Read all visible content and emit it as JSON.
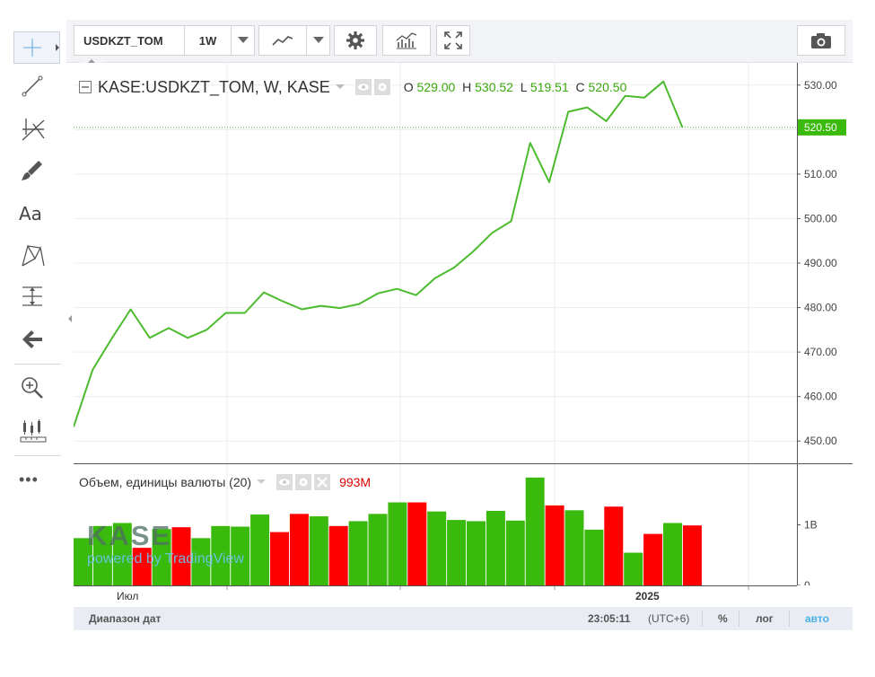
{
  "toolbar": {
    "symbol": "USDKZT_TOM",
    "interval": "1W"
  },
  "legend": {
    "title": "KASE:USDKZT_TOM, W, KASE",
    "o_label": "O",
    "o_value": "529.00",
    "h_label": "H",
    "h_value": "530.52",
    "l_label": "L",
    "l_value": "519.51",
    "c_label": "C",
    "c_value": "520.50"
  },
  "volume_legend": {
    "title": "Объем, единицы валюты (20)",
    "value": "993M"
  },
  "left_toolbar": {
    "text_tool_label": "Aa",
    "more_label": "•••"
  },
  "watermark": {
    "logo_text": "KASE",
    "powered": "powered by TradingView"
  },
  "price_axis": {
    "ticks": [
      "530.00",
      "520.00",
      "510.00",
      "500.00",
      "490.00",
      "480.00",
      "470.00",
      "460.00",
      "450.00"
    ],
    "last_price": "520.50"
  },
  "volume_axis": {
    "ticks": [
      "1B",
      "0"
    ]
  },
  "time_axis": {
    "labels": [
      "Июл",
      "2025"
    ]
  },
  "status_bar": {
    "date_range": "Диапазон дат",
    "time": "23:05:11",
    "timezone": "(UTC+6)",
    "percent": "%",
    "log": "лог",
    "auto": "авто"
  },
  "colors": {
    "line": "#4cbb2e",
    "volume_up": "#3aba0d",
    "volume_down": "#ff0000",
    "price_tag_bg": "#3aba0d",
    "auto_text": "#4ab0e6",
    "volume_value": "#e00000"
  },
  "chart_data": {
    "type": "line",
    "title": "KASE:USDKZT_TOM, W, KASE",
    "ylim": [
      445.0,
      535.0
    ],
    "x": [
      0,
      1,
      2,
      3,
      4,
      5,
      6,
      7,
      8,
      9,
      10,
      11,
      12,
      13,
      14,
      15,
      16,
      17,
      18,
      19,
      20,
      21,
      22,
      23,
      24,
      25,
      26,
      27,
      28,
      29,
      30,
      31,
      32
    ],
    "values": [
      453.2,
      466.0,
      473.0,
      479.6,
      473.2,
      475.4,
      473.2,
      475.0,
      478.8,
      478.8,
      483.4,
      481.4,
      479.6,
      480.4,
      479.9,
      480.8,
      483.2,
      484.2,
      482.8,
      486.6,
      489.0,
      492.6,
      496.8,
      499.4,
      517.0,
      508.2,
      524.0,
      525.0,
      521.9,
      527.6,
      527.2,
      530.8,
      520.5
    ],
    "volume": [
      {
        "v": 0.78,
        "up": true
      },
      {
        "v": 0.98,
        "up": true
      },
      {
        "v": 1.03,
        "up": true
      },
      {
        "v": 0.62,
        "up": false
      },
      {
        "v": 0.93,
        "up": true
      },
      {
        "v": 0.96,
        "up": false
      },
      {
        "v": 0.78,
        "up": true
      },
      {
        "v": 0.98,
        "up": true
      },
      {
        "v": 0.97,
        "up": true
      },
      {
        "v": 1.17,
        "up": true
      },
      {
        "v": 0.88,
        "up": false
      },
      {
        "v": 1.18,
        "up": false
      },
      {
        "v": 1.14,
        "up": true
      },
      {
        "v": 0.98,
        "up": false
      },
      {
        "v": 1.06,
        "up": true
      },
      {
        "v": 1.18,
        "up": true
      },
      {
        "v": 1.37,
        "up": true
      },
      {
        "v": 1.37,
        "up": false
      },
      {
        "v": 1.22,
        "up": true
      },
      {
        "v": 1.08,
        "up": true
      },
      {
        "v": 1.06,
        "up": true
      },
      {
        "v": 1.23,
        "up": true
      },
      {
        "v": 1.07,
        "up": true
      },
      {
        "v": 1.78,
        "up": true
      },
      {
        "v": 1.32,
        "up": false
      },
      {
        "v": 1.24,
        "up": true
      },
      {
        "v": 0.92,
        "up": true
      },
      {
        "v": 1.3,
        "up": false
      },
      {
        "v": 0.54,
        "up": true
      },
      {
        "v": 0.85,
        "up": false
      },
      {
        "v": 1.03,
        "up": true
      },
      {
        "v": 0.99,
        "up": false
      }
    ],
    "volume_ylim": [
      0,
      2.0
    ],
    "volume_unit": "B"
  }
}
